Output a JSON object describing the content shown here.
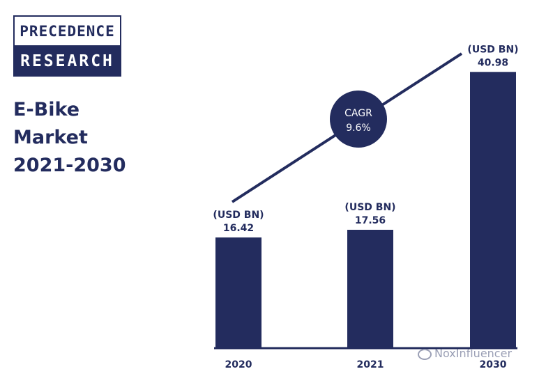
{
  "brand": {
    "line1": "PRECEDENCE",
    "line2": "RESEARCH"
  },
  "title": {
    "line1": "E-Bike",
    "line2": "Market",
    "line3": "2021-2030"
  },
  "colors": {
    "bar": "#232c5e",
    "text": "#232c5e",
    "cagr_bg": "#232c5e"
  },
  "cagr": {
    "label": "CAGR",
    "value": "9.6%"
  },
  "watermark": "NoxInfluencer",
  "chart_data": {
    "type": "bar",
    "categories": [
      "2020",
      "2021",
      "2030"
    ],
    "values": [
      16.42,
      17.56,
      40.98
    ],
    "unit_label": "(USD BN)",
    "data_labels": [
      "16.42",
      "17.56",
      "40.98"
    ],
    "title": "",
    "xlabel": "",
    "ylabel": "",
    "ylim": [
      0,
      47
    ],
    "grid": false,
    "legend": "none"
  }
}
